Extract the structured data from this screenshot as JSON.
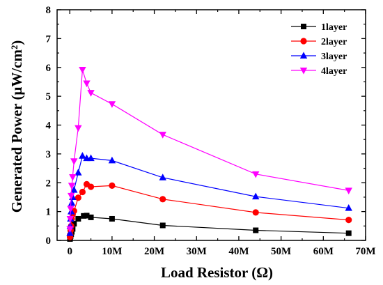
{
  "chart_data": {
    "type": "line",
    "xlabel": "Load Resistor (Ω)",
    "ylabel": "Generated Power (μW/cm²)",
    "xlim": [
      -3,
      70
    ],
    "ylim": [
      0,
      8
    ],
    "x_unit": "MΩ",
    "xticks": [
      0,
      10,
      20,
      30,
      40,
      50,
      60,
      70
    ],
    "xtick_labels": [
      "0",
      "10M",
      "20M",
      "30M",
      "40M",
      "50M",
      "60M",
      "70M"
    ],
    "yticks": [
      0,
      1,
      2,
      3,
      4,
      5,
      6,
      7,
      8
    ],
    "ytick_labels": [
      "0",
      "1",
      "2",
      "3",
      "4",
      "5",
      "6",
      "7",
      "8"
    ],
    "legend_position": "top-right",
    "grid": false,
    "series": [
      {
        "name": "1layer",
        "color": "#000000",
        "marker": "square",
        "x": [
          0.05,
          0.1,
          0.2,
          0.33,
          0.47,
          0.68,
          1.0,
          2.0,
          3.3,
          4.0,
          5.0,
          10.0,
          22.0,
          44.0,
          66.0
        ],
        "y": [
          0.05,
          0.1,
          0.15,
          0.22,
          0.3,
          0.4,
          0.58,
          0.75,
          0.85,
          0.86,
          0.8,
          0.75,
          0.52,
          0.35,
          0.25
        ]
      },
      {
        "name": "2layer",
        "color": "#ff0000",
        "marker": "circle",
        "x": [
          0.05,
          0.1,
          0.2,
          0.33,
          0.47,
          0.68,
          1.0,
          2.0,
          3.0,
          4.0,
          5.0,
          10.0,
          22.0,
          44.0,
          66.0
        ],
        "y": [
          0.12,
          0.2,
          0.35,
          0.5,
          0.75,
          0.9,
          1.02,
          1.48,
          1.68,
          1.95,
          1.86,
          1.9,
          1.43,
          0.97,
          0.71
        ]
      },
      {
        "name": "3layer",
        "color": "#0000ff",
        "marker": "triangle-up",
        "x": [
          0.05,
          0.1,
          0.2,
          0.33,
          0.47,
          0.68,
          1.0,
          2.0,
          3.0,
          4.0,
          5.0,
          10.0,
          22.0,
          44.0,
          66.0
        ],
        "y": [
          0.25,
          0.5,
          0.75,
          1.0,
          1.3,
          1.5,
          1.75,
          2.35,
          2.93,
          2.85,
          2.85,
          2.77,
          2.18,
          1.52,
          1.12
        ]
      },
      {
        "name": "4layer",
        "color": "#ff00ff",
        "marker": "triangle-down",
        "x": [
          0.05,
          0.1,
          0.2,
          0.33,
          0.47,
          0.68,
          1.0,
          2.0,
          3.0,
          4.0,
          5.0,
          10.0,
          22.0,
          44.0,
          66.0
        ],
        "y": [
          0.4,
          0.75,
          1.1,
          1.55,
          1.9,
          2.2,
          2.75,
          3.9,
          5.92,
          5.45,
          5.12,
          4.73,
          3.67,
          2.3,
          1.73
        ]
      }
    ]
  }
}
